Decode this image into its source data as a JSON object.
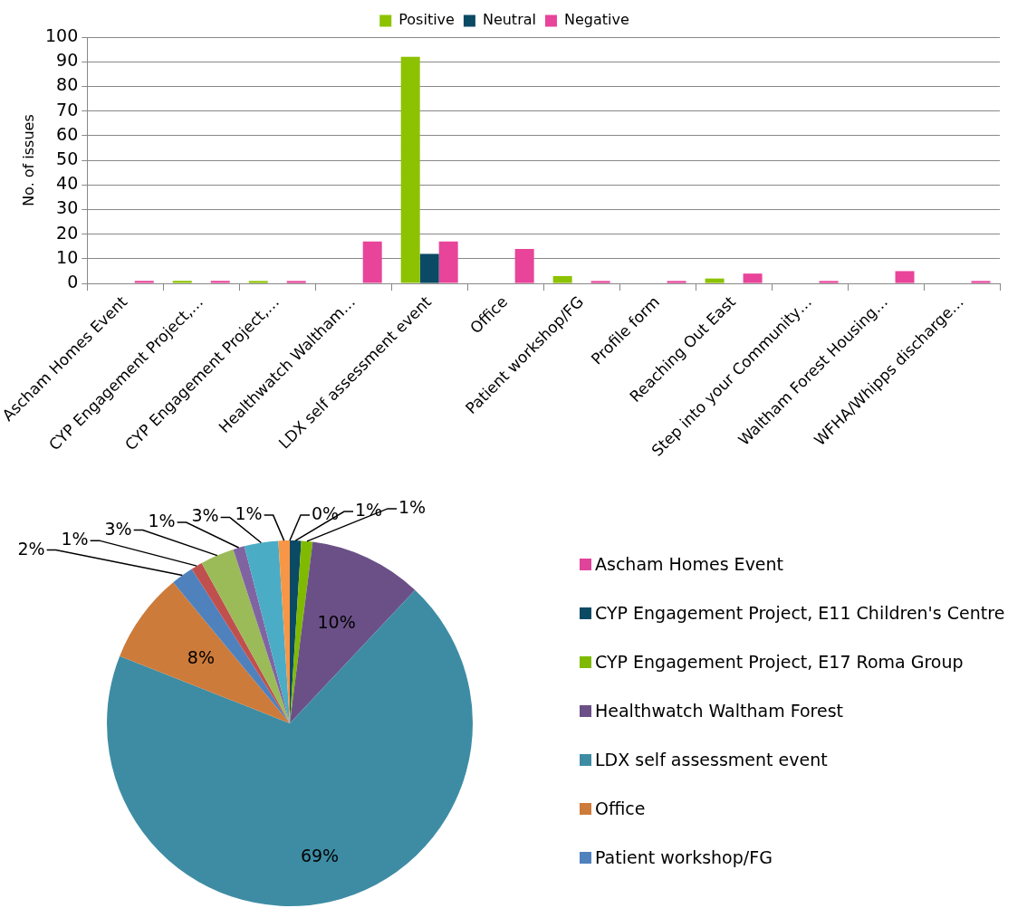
{
  "chart_data": [
    {
      "type": "bar",
      "ylabel": "No. of issues",
      "categories": [
        "Ascham Homes Event",
        "CYP Engagement Project,…",
        "CYP Engagement Project,…",
        "Healthwatch Waltham…",
        "LDX self assessment event",
        "Office",
        "Patient workshop/FG",
        "Profile form",
        "Reaching Out East",
        "Step into your Community…",
        "Waltham Forest Housing…",
        "WFHA/Whipps discharge…"
      ],
      "series": [
        {
          "name": "Positive",
          "color": "#8cc200",
          "values": [
            0,
            1,
            1,
            0,
            92,
            0,
            3,
            0,
            2,
            0,
            0,
            0
          ]
        },
        {
          "name": "Neutral",
          "color": "#0b4a64",
          "values": [
            0,
            0,
            0,
            0,
            12,
            0,
            0,
            0,
            0,
            0,
            0,
            0
          ]
        },
        {
          "name": "Negative",
          "color": "#e8449a",
          "values": [
            1,
            1,
            1,
            17,
            17,
            14,
            1,
            1,
            4,
            1,
            5,
            1
          ]
        }
      ],
      "ylim": [
        0,
        100
      ],
      "yticks": [
        0,
        10,
        20,
        30,
        40,
        50,
        60,
        70,
        80,
        90,
        100
      ],
      "grid": "y",
      "legend": "top"
    },
    {
      "type": "pie",
      "categories": [
        "Ascham Homes Event",
        "CYP Engagement Project, E11 Children's Centre",
        "CYP Engagement Project, E17 Roma Group",
        "Healthwatch Waltham Forest",
        "LDX self assessment event",
        "Office",
        "Patient workshop/FG",
        null,
        null,
        null,
        null,
        null
      ],
      "values": [
        0,
        1,
        1,
        10,
        69,
        8,
        2,
        1,
        3,
        1,
        3,
        1
      ],
      "value_labels": [
        "0%",
        "1%",
        "1%",
        "10%",
        "69%",
        "8%",
        "2%",
        "1%",
        "3%",
        "1%",
        "3%",
        "1%"
      ],
      "colors": [
        "#e0439a",
        "#0b4a64",
        "#7fba00",
        "#6b5087",
        "#3e8ca4",
        "#cd7b3a",
        "#4f81bd",
        "#c0504d",
        "#9bbb59",
        "#8064a2",
        "#4bacc6",
        "#f79646"
      ],
      "legend": "right"
    }
  ]
}
